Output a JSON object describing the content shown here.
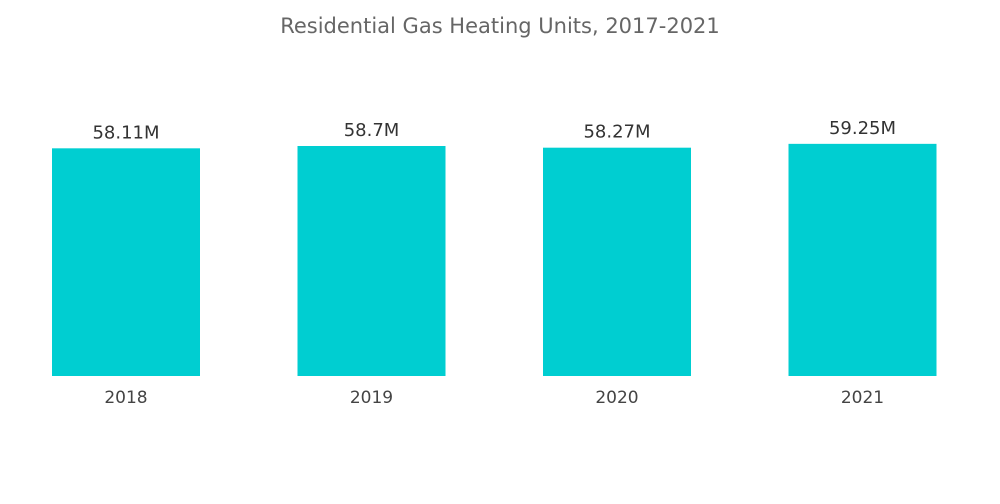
{
  "chart_data": {
    "type": "bar",
    "title": "Residential Gas Heating Units, 2017-2021",
    "categories": [
      "2018",
      "2019",
      "2020",
      "2021"
    ],
    "values": [
      58.11,
      58.7,
      58.27,
      59.25
    ],
    "value_labels": [
      "58.11M",
      "58.7M",
      "58.27M",
      "59.25M"
    ],
    "xlabel": "",
    "ylabel": "",
    "grid": false,
    "legend": "none",
    "bar_color": "#00CED1"
  }
}
